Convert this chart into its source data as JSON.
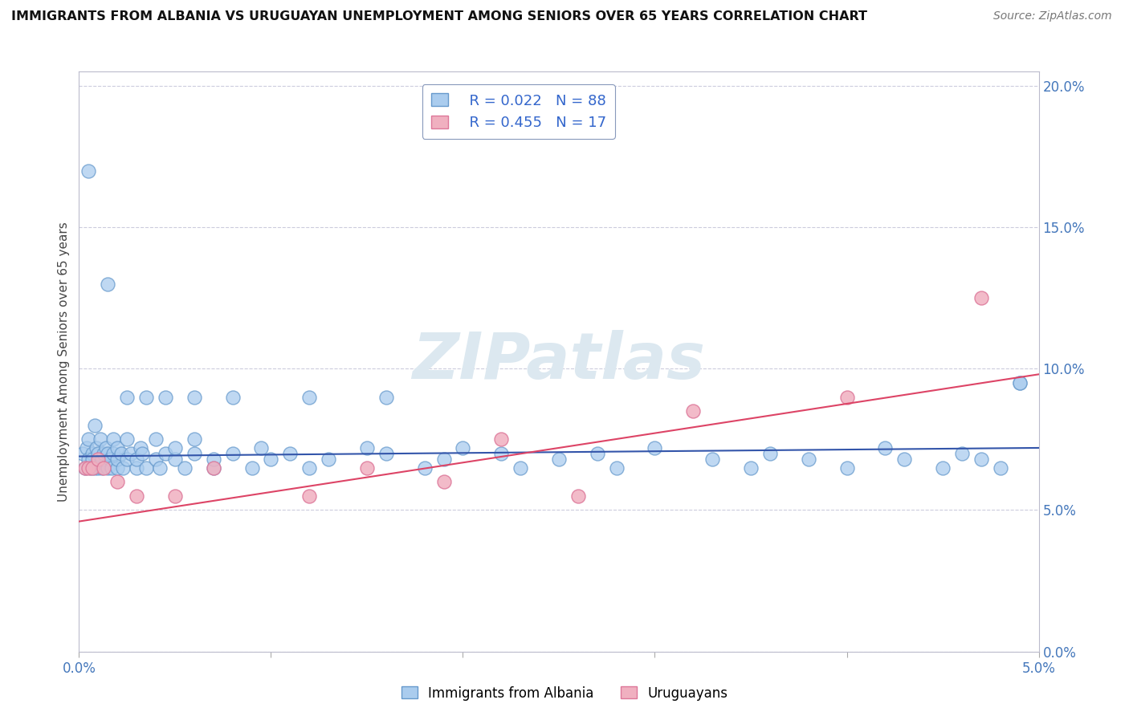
{
  "title": "IMMIGRANTS FROM ALBANIA VS URUGUAYAN UNEMPLOYMENT AMONG SENIORS OVER 65 YEARS CORRELATION CHART",
  "source": "Source: ZipAtlas.com",
  "ylabel": "Unemployment Among Seniors over 65 years",
  "xmin": 0.0,
  "xmax": 0.05,
  "ymin": 0.0,
  "ymax": 0.205,
  "series1_color": "#aaccee",
  "series1_edge": "#6699cc",
  "series2_color": "#f0b0c0",
  "series2_edge": "#dd7799",
  "trend1_color": "#3355aa",
  "trend2_color": "#dd4466",
  "watermark": "ZIPatlas",
  "watermark_color": "#dce8f0",
  "background_color": "#ffffff",
  "grid_color": "#ccccdd",
  "R1": 0.022,
  "N1": 88,
  "R2": 0.455,
  "N2": 17,
  "trend1_x0": 0.0,
  "trend1_y0": 0.069,
  "trend1_x1": 0.05,
  "trend1_y1": 0.072,
  "trend2_x0": 0.0,
  "trend2_y0": 0.046,
  "trend2_x1": 0.05,
  "trend2_y1": 0.098,
  "series1_x": [
    0.0002,
    0.0003,
    0.0004,
    0.0005,
    0.0005,
    0.0006,
    0.0007,
    0.0007,
    0.0008,
    0.0008,
    0.0009,
    0.001,
    0.001,
    0.0011,
    0.0012,
    0.0012,
    0.0013,
    0.0014,
    0.0015,
    0.0015,
    0.0016,
    0.0017,
    0.0018,
    0.0018,
    0.002,
    0.002,
    0.002,
    0.0022,
    0.0023,
    0.0025,
    0.0025,
    0.0027,
    0.003,
    0.003,
    0.0032,
    0.0033,
    0.0035,
    0.004,
    0.004,
    0.0042,
    0.0045,
    0.005,
    0.005,
    0.0055,
    0.006,
    0.006,
    0.007,
    0.007,
    0.008,
    0.009,
    0.0095,
    0.01,
    0.011,
    0.012,
    0.013,
    0.015,
    0.016,
    0.018,
    0.019,
    0.02,
    0.022,
    0.023,
    0.025,
    0.027,
    0.028,
    0.03,
    0.033,
    0.035,
    0.036,
    0.038,
    0.04,
    0.042,
    0.043,
    0.045,
    0.046,
    0.047,
    0.048,
    0.049,
    0.0005,
    0.0015,
    0.0025,
    0.0035,
    0.0045,
    0.006,
    0.008,
    0.012,
    0.016,
    0.049
  ],
  "series1_y": [
    0.07,
    0.065,
    0.072,
    0.068,
    0.075,
    0.065,
    0.07,
    0.068,
    0.065,
    0.08,
    0.072,
    0.065,
    0.07,
    0.075,
    0.065,
    0.068,
    0.07,
    0.072,
    0.065,
    0.07,
    0.068,
    0.065,
    0.07,
    0.075,
    0.065,
    0.068,
    0.072,
    0.07,
    0.065,
    0.068,
    0.075,
    0.07,
    0.065,
    0.068,
    0.072,
    0.07,
    0.065,
    0.075,
    0.068,
    0.065,
    0.07,
    0.068,
    0.072,
    0.065,
    0.07,
    0.075,
    0.065,
    0.068,
    0.07,
    0.065,
    0.072,
    0.068,
    0.07,
    0.065,
    0.068,
    0.072,
    0.07,
    0.065,
    0.068,
    0.072,
    0.07,
    0.065,
    0.068,
    0.07,
    0.065,
    0.072,
    0.068,
    0.065,
    0.07,
    0.068,
    0.065,
    0.072,
    0.068,
    0.065,
    0.07,
    0.068,
    0.065,
    0.095,
    0.17,
    0.13,
    0.09,
    0.09,
    0.09,
    0.09,
    0.09,
    0.09,
    0.09,
    0.095
  ],
  "series2_x": [
    0.0003,
    0.0005,
    0.0007,
    0.001,
    0.0013,
    0.002,
    0.003,
    0.005,
    0.007,
    0.012,
    0.015,
    0.019,
    0.022,
    0.026,
    0.032,
    0.04,
    0.047
  ],
  "series2_y": [
    0.065,
    0.065,
    0.065,
    0.068,
    0.065,
    0.06,
    0.055,
    0.055,
    0.065,
    0.055,
    0.065,
    0.06,
    0.075,
    0.055,
    0.085,
    0.09,
    0.125
  ]
}
